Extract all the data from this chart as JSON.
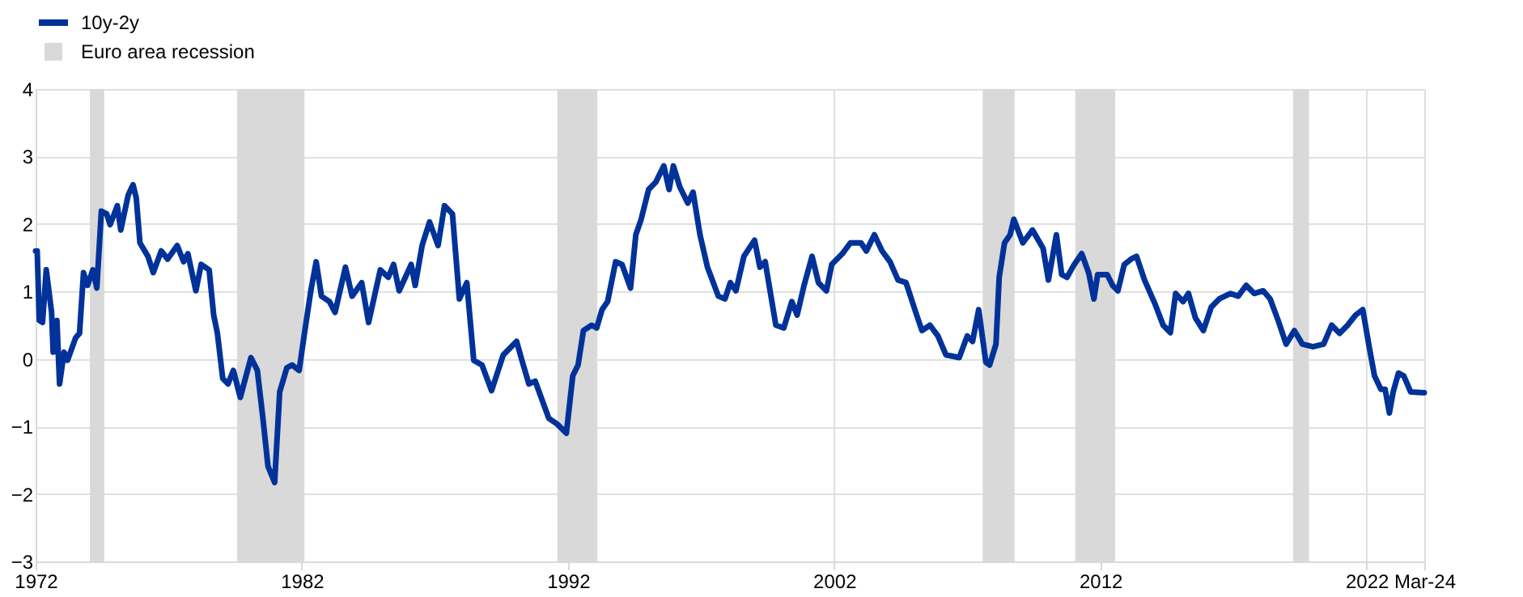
{
  "chart_data": {
    "type": "line",
    "x": [
      1972.0,
      1972.06,
      1972.14,
      1972.26,
      1972.4,
      1972.6,
      1972.66,
      1972.8,
      1972.9,
      1973.07,
      1973.2,
      1973.5,
      1973.65,
      1973.8,
      1973.95,
      1974.15,
      1974.3,
      1974.47,
      1974.67,
      1974.8,
      1975.07,
      1975.2,
      1975.48,
      1975.66,
      1975.78,
      1975.92,
      1976.22,
      1976.42,
      1976.72,
      1976.96,
      1977.32,
      1977.56,
      1977.72,
      1978.02,
      1978.22,
      1978.52,
      1978.69,
      1978.83,
      1979.03,
      1979.23,
      1979.43,
      1979.69,
      1980.09,
      1980.33,
      1980.54,
      1980.73,
      1980.98,
      1981.17,
      1981.44,
      1981.64,
      1981.9,
      1982.1,
      1982.34,
      1982.54,
      1982.74,
      1983.04,
      1983.25,
      1983.64,
      1983.89,
      1984.25,
      1984.51,
      1984.95,
      1985.25,
      1985.45,
      1985.66,
      1986.11,
      1986.26,
      1986.52,
      1986.8,
      1987.12,
      1987.36,
      1987.66,
      1987.92,
      1988.2,
      1988.46,
      1988.77,
      1989.13,
      1989.57,
      1990.07,
      1990.27,
      1990.53,
      1990.77,
      1991.28,
      1991.58,
      1991.94,
      1992.18,
      1992.38,
      1992.58,
      1992.89,
      1993.08,
      1993.28,
      1993.49,
      1993.79,
      1994.03,
      1994.35,
      1994.55,
      1994.75,
      1995.03,
      1995.3,
      1995.6,
      1995.8,
      1995.96,
      1996.2,
      1996.5,
      1996.7,
      1996.96,
      1997.24,
      1997.65,
      1997.9,
      1998.1,
      1998.31,
      1998.61,
      1999.01,
      1999.21,
      1999.41,
      1999.81,
      2000.11,
      2000.41,
      2000.61,
      2000.87,
      2001.17,
      2001.41,
      2001.71,
      2001.91,
      2002.31,
      2002.61,
      2003.01,
      2003.21,
      2003.51,
      2003.8,
      2004.1,
      2004.4,
      2004.7,
      2005.1,
      2005.3,
      2005.6,
      2005.9,
      2006.2,
      2006.7,
      2007.0,
      2007.2,
      2007.43,
      2007.7,
      2007.84,
      2008.08,
      2008.2,
      2008.4,
      2008.61,
      2008.75,
      2009.09,
      2009.45,
      2009.85,
      2010.05,
      2010.35,
      2010.55,
      2010.75,
      2011.02,
      2011.3,
      2011.56,
      2011.76,
      2011.9,
      2012.26,
      2012.46,
      2012.66,
      2012.9,
      2013.16,
      2013.36,
      2013.66,
      2014.06,
      2014.36,
      2014.63,
      2014.83,
      2015.11,
      2015.31,
      2015.57,
      2015.87,
      2016.17,
      2016.47,
      2016.88,
      2017.18,
      2017.48,
      2017.78,
      2018.12,
      2018.38,
      2018.68,
      2018.98,
      2019.29,
      2019.59,
      2019.99,
      2020.39,
      2020.69,
      2020.99,
      2021.29,
      2021.59,
      2021.86,
      2022.1,
      2022.3,
      2022.54,
      2022.7,
      2022.86,
      2023.0,
      2023.2,
      2023.4,
      2023.66,
      2024.17
    ],
    "series": [
      {
        "name": "10y-2y",
        "color": "#003299",
        "values": [
          1.6,
          1.6,
          0.57,
          0.54,
          1.32,
          0.69,
          0.1,
          0.57,
          -0.37,
          0.1,
          -0.02,
          0.31,
          0.38,
          1.28,
          1.09,
          1.32,
          1.05,
          2.19,
          2.15,
          1.99,
          2.27,
          1.91,
          2.43,
          2.58,
          2.39,
          1.72,
          1.52,
          1.28,
          1.6,
          1.48,
          1.68,
          1.44,
          1.56,
          1.01,
          1.4,
          1.32,
          0.65,
          0.38,
          -0.29,
          -0.37,
          -0.17,
          -0.57,
          0.02,
          -0.17,
          -0.88,
          -1.59,
          -1.83,
          -0.49,
          -0.13,
          -0.09,
          -0.17,
          0.38,
          1.01,
          1.44,
          0.93,
          0.85,
          0.69,
          1.36,
          0.93,
          1.13,
          0.54,
          1.32,
          1.21,
          1.4,
          1.01,
          1.4,
          1.09,
          1.68,
          2.03,
          1.68,
          2.27,
          2.15,
          0.89,
          1.13,
          -0.02,
          -0.09,
          -0.47,
          0.06,
          0.26,
          -0.02,
          -0.37,
          -0.33,
          -0.88,
          -0.96,
          -1.1,
          -0.25,
          -0.09,
          0.42,
          0.5,
          0.46,
          0.73,
          0.85,
          1.44,
          1.4,
          1.05,
          1.84,
          2.07,
          2.51,
          2.62,
          2.86,
          2.51,
          2.86,
          2.55,
          2.31,
          2.47,
          1.84,
          1.36,
          0.93,
          0.89,
          1.13,
          1.01,
          1.52,
          1.76,
          1.36,
          1.44,
          0.5,
          0.46,
          0.85,
          0.65,
          1.09,
          1.52,
          1.13,
          1.01,
          1.4,
          1.56,
          1.72,
          1.72,
          1.6,
          1.84,
          1.6,
          1.44,
          1.17,
          1.13,
          0.65,
          0.42,
          0.5,
          0.34,
          0.06,
          0.02,
          0.34,
          0.26,
          0.73,
          -0.05,
          -0.09,
          0.22,
          1.21,
          1.72,
          1.84,
          2.07,
          1.72,
          1.91,
          1.64,
          1.17,
          1.84,
          1.25,
          1.21,
          1.4,
          1.56,
          1.28,
          0.89,
          1.25,
          1.25,
          1.09,
          1.01,
          1.4,
          1.48,
          1.52,
          1.17,
          0.81,
          0.5,
          0.39,
          0.97,
          0.85,
          0.97,
          0.61,
          0.42,
          0.77,
          0.89,
          0.97,
          0.93,
          1.09,
          0.97,
          1.01,
          0.89,
          0.57,
          0.22,
          0.42,
          0.22,
          0.18,
          0.22,
          0.5,
          0.38,
          0.5,
          0.65,
          0.73,
          0.18,
          -0.25,
          -0.45,
          -0.45,
          -0.8,
          -0.49,
          -0.21,
          -0.25,
          -0.49,
          -0.5
        ]
      }
    ],
    "xlim": [
      1972,
      2024.17
    ],
    "xticks": [
      1972,
      1982,
      1992,
      2002,
      2012,
      2022,
      {
        "value": 2024.17,
        "label": "Mar-24"
      }
    ],
    "ylim": [
      -3,
      4
    ],
    "yticks": [
      -3,
      -2,
      -1,
      0,
      1,
      2,
      3,
      4
    ],
    "bands": [
      {
        "axis": "x",
        "from": 1974.04,
        "to": 1974.58,
        "label": "Euro area recession",
        "color": "#d9d9d9"
      },
      {
        "axis": "x",
        "from": 1979.57,
        "to": 1982.1,
        "color": "#d9d9d9"
      },
      {
        "axis": "x",
        "from": 1991.6,
        "to": 1993.1,
        "color": "#d9d9d9"
      },
      {
        "axis": "x",
        "from": 2007.58,
        "to": 2008.78,
        "color": "#d9d9d9"
      },
      {
        "axis": "x",
        "from": 2011.06,
        "to": 2012.56,
        "color": "#d9d9d9"
      },
      {
        "axis": "x",
        "from": 2019.24,
        "to": 2019.84,
        "color": "#d9d9d9"
      }
    ],
    "grid": true,
    "legend": "top left"
  }
}
